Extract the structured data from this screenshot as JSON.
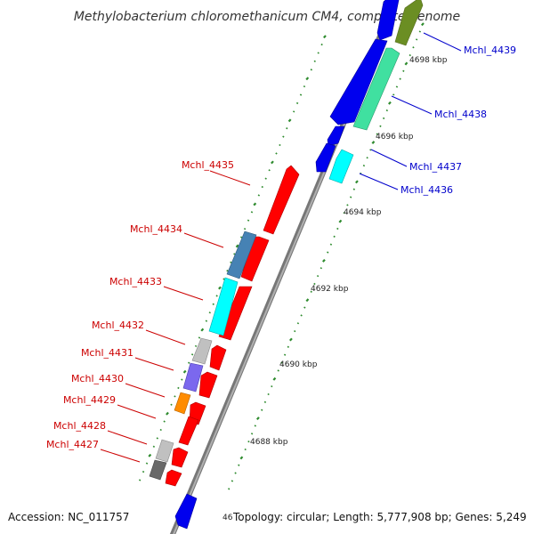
{
  "title": "Methylobacterium chloromethanicum CM4, complete genome",
  "footer": {
    "accession": "Accession: NC_011757",
    "summary": "Topology: circular; Length: 5,777,908 bp; Genes: 5,249"
  },
  "colors": {
    "forward_label": "#0000cc",
    "reverse_label": "#cc0000",
    "backbone": "#8a8a8a",
    "tick": "#2e8b2e"
  },
  "ticks": [
    "4698 kbp",
    "4696 kbp",
    "4694 kbp",
    "4692 kbp",
    "4690 kbp",
    "4688 kbp",
    "46"
  ],
  "genes_forward": [
    {
      "name": "Mchl_4439",
      "color": "#6b8e23"
    },
    {
      "name": "Mchl_4438",
      "color": "#40e0a0"
    },
    {
      "name": "Mchl_4437",
      "color": "#0000ee"
    },
    {
      "name": "Mchl_4436",
      "color": "#00ffff"
    }
  ],
  "genes_reverse": [
    {
      "name": "Mchl_4435",
      "color": "#ff0000"
    },
    {
      "name": "Mchl_4434",
      "color": "#4682b4"
    },
    {
      "name": "Mchl_4433",
      "color": "#00ffff"
    },
    {
      "name": "Mchl_4432",
      "color": "#c0c0c0"
    },
    {
      "name": "Mchl_4431",
      "color": "#7b68ee"
    },
    {
      "name": "Mchl_4430",
      "color": "#ff8c00"
    },
    {
      "name": "Mchl_4429",
      "color": "#ff0000"
    },
    {
      "name": "Mchl_4428",
      "color": "#c0c0c0"
    },
    {
      "name": "Mchl_4427",
      "color": "#696969"
    }
  ]
}
